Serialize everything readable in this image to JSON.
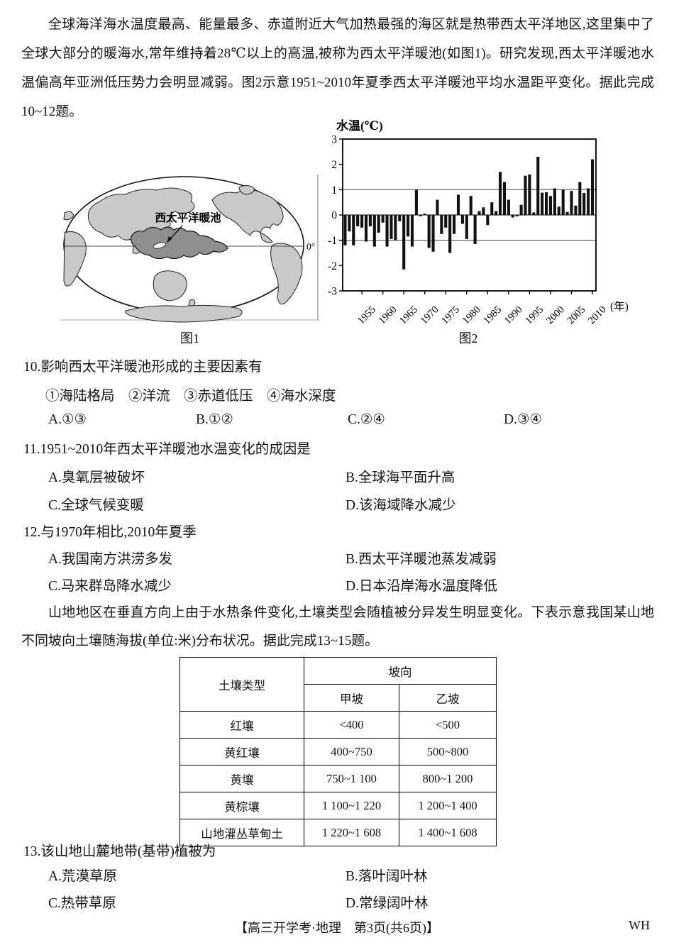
{
  "intro1": "全球海洋海水温度最高、能量最多、赤道附近大气加热最强的海区就是热带西太平洋地区,这里集中了全球大部分的暖海水,常年维持着28℃以上的高温,被称为西太平洋暖池(如图1)。研究发现,西太平洋暖池水温偏高年亚洲低压势力会明显减弱。图2示意1951~2010年夏季西太平洋暖池平均水温距平变化。据此完成10~12题。",
  "figure1": {
    "caption": "图1",
    "map_label": "西太平洋暖池",
    "equator_label": "0°"
  },
  "figure2": {
    "caption": "图2"
  },
  "chart_data": {
    "type": "bar",
    "title": "1951~2010年夏季西太平洋暖池平均水温距平变化",
    "ylabel": "水温(℃)",
    "x_suffix": "(年)",
    "years_start": 1951,
    "years_end": 2010,
    "x_tick_labels": [
      "1955",
      "1960",
      "1965",
      "1970",
      "1975",
      "1980",
      "1985",
      "1990",
      "1995",
      "2000",
      "2005",
      "2010"
    ],
    "y_ticks": [
      3,
      2,
      1,
      0,
      -1,
      -2,
      -3
    ],
    "ylim": [
      -3,
      3
    ],
    "reference_lines": [
      1,
      -1
    ],
    "grid": "horizontal reference lines at +1 and -1 only",
    "legend": "none",
    "bar_color": "#111111",
    "values": [
      -1.2,
      -0.65,
      -1.2,
      -0.45,
      -0.5,
      -1.05,
      -0.45,
      -1.25,
      -0.7,
      -0.3,
      -1.25,
      -0.95,
      -1.0,
      -0.25,
      -2.15,
      -0.85,
      -1.25,
      1.0,
      -0.05,
      0.05,
      -1.3,
      -1.45,
      0.6,
      -0.75,
      -0.5,
      -1.5,
      -0.75,
      0.8,
      -0.35,
      -0.95,
      0.75,
      -1.15,
      0.15,
      0.3,
      -0.4,
      0.5,
      0.15,
      1.7,
      1.3,
      0.6,
      -0.1,
      -0.05,
      0.4,
      1.55,
      1.6,
      0.1,
      2.3,
      0.88,
      0.9,
      0.75,
      1.05,
      0.33,
      1.0,
      0.12,
      0.95,
      0.37,
      1.3,
      0.87,
      1.05,
      2.2
    ]
  },
  "q10": {
    "number": "10.",
    "stem": "影响西太平洋暖池形成的主要因素有",
    "sub": "①海陆格局　②洋流　③赤道低压　④海水深度",
    "options": [
      {
        "label": "A.",
        "text": "①③"
      },
      {
        "label": "B.",
        "text": "①②"
      },
      {
        "label": "C.",
        "text": "②④"
      },
      {
        "label": "D.",
        "text": "③④"
      }
    ]
  },
  "q11": {
    "number": "11.",
    "stem": "1951~2010年西太平洋暖池水温变化的成因是",
    "options": [
      {
        "label": "A.",
        "text": "臭氧层被破坏"
      },
      {
        "label": "B.",
        "text": "全球海平面升高"
      },
      {
        "label": "C.",
        "text": "全球气候变暖"
      },
      {
        "label": "D.",
        "text": "该海域降水减少"
      }
    ]
  },
  "q12": {
    "number": "12.",
    "stem": "与1970年相比,2010年夏季",
    "options": [
      {
        "label": "A.",
        "text": "我国南方洪涝多发"
      },
      {
        "label": "B.",
        "text": "西太平洋暖池蒸发减弱"
      },
      {
        "label": "C.",
        "text": "马来群岛降水减少"
      },
      {
        "label": "D.",
        "text": "日本沿岸海水温度降低"
      }
    ]
  },
  "intro2": "山地地区在垂直方向上由于水热条件变化,土壤类型会随植被分异发生明显变化。下表示意我国某山地不同坡向土壤随海拔(单位:米)分布状况。据此完成13~15题。",
  "table": {
    "type_header": "土壤类型",
    "slope_header": "坡向",
    "col_a": "甲坡",
    "col_b": "乙坡",
    "rows": [
      {
        "type": "红壤",
        "a": "<400",
        "b": "<500"
      },
      {
        "type": "黄红壤",
        "a": "400~750",
        "b": "500~800"
      },
      {
        "type": "黄壤",
        "a": "750~1 100",
        "b": "800~1 200"
      },
      {
        "type": "黄棕壤",
        "a": "1 100~1 220",
        "b": "1 200~1 400"
      },
      {
        "type": "山地灌丛草甸土",
        "a": "1 220~1 608",
        "b": "1 400~1 608"
      }
    ]
  },
  "q13": {
    "number": "13.",
    "stem": "该山地山麓地带(基带)植被为",
    "options": [
      {
        "label": "A.",
        "text": "荒漠草原"
      },
      {
        "label": "B.",
        "text": "落叶阔叶林"
      },
      {
        "label": "C.",
        "text": "热带草原"
      },
      {
        "label": "D.",
        "text": "常绿阔叶林"
      }
    ]
  },
  "footer": {
    "center": "【高三开学考·地理　第3页(共6页)】",
    "right": "WH"
  }
}
